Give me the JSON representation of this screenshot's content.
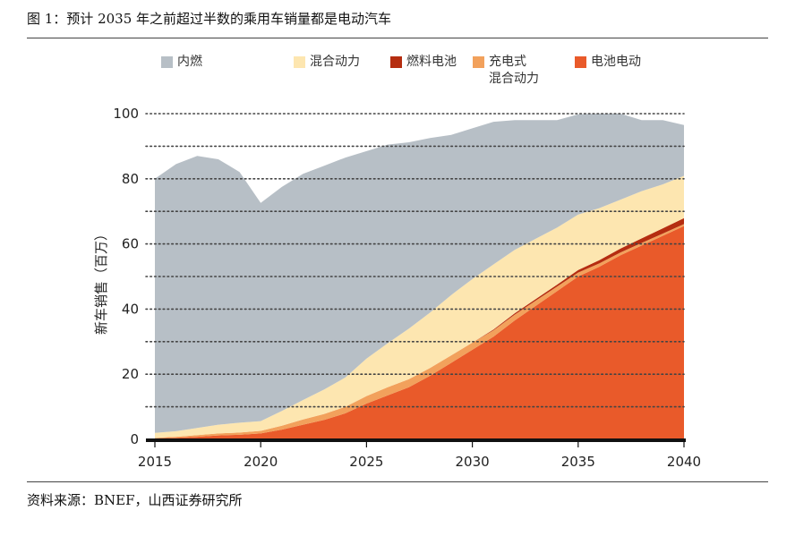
{
  "figure": {
    "title": "图 1：预计 2035 年之前超过半数的乘用车销量都是电动汽车",
    "source": "资料来源：BNEF，山西证券研究所"
  },
  "colors": {
    "ice": "#b7bfc6",
    "hybrid": "#fde6b0",
    "fuel_cell": "#b52d10",
    "phev": "#f2a15c",
    "bev": "#e95a2a",
    "gridline": "#444444",
    "axis": "#111111"
  },
  "legend": [
    {
      "key": "ice",
      "label": "内燃",
      "label2": ""
    },
    {
      "key": "hybrid",
      "label": "混合动力",
      "label2": ""
    },
    {
      "key": "fuel_cell",
      "label": "燃料电池",
      "label2": ""
    },
    {
      "key": "phev",
      "label": "充电式",
      "label2": "混合动力"
    },
    {
      "key": "bev",
      "label": "电池电动",
      "label2": ""
    }
  ],
  "chart_data": {
    "type": "area",
    "stacked": true,
    "title": "",
    "xlabel": "",
    "ylabel": "新车销售（百万）",
    "xlim": [
      2015,
      2040
    ],
    "ylim": [
      0,
      100
    ],
    "x_ticks": [
      "2015",
      "2020",
      "2025",
      "2030",
      "2035",
      "2040"
    ],
    "y_ticks": [
      "0",
      "20",
      "40",
      "60",
      "80",
      "100"
    ],
    "grid": "horizontal dotted",
    "legend_position": "top",
    "x": [
      2015,
      2016,
      2017,
      2018,
      2019,
      2020,
      2021,
      2022,
      2023,
      2024,
      2025,
      2026,
      2027,
      2028,
      2029,
      2030,
      2031,
      2032,
      2033,
      2034,
      2035,
      2036,
      2037,
      2038,
      2039,
      2040
    ],
    "series": [
      {
        "name": "电池电动",
        "key": "bev",
        "values": [
          0.3,
          0.5,
          0.8,
          1.2,
          1.4,
          1.8,
          3.0,
          4.5,
          6.0,
          8.0,
          11.0,
          13.5,
          16.0,
          19.5,
          23.5,
          27.5,
          31.5,
          36.5,
          41.0,
          45.5,
          50.0,
          53.0,
          56.5,
          59.5,
          62.5,
          65.5
        ]
      },
      {
        "name": "充电式混合动力",
        "key": "phev",
        "values": [
          0.2,
          0.3,
          0.5,
          0.6,
          0.7,
          0.8,
          1.2,
          1.6,
          1.8,
          2.0,
          2.3,
          2.5,
          2.5,
          2.4,
          2.3,
          2.2,
          2.0,
          1.8,
          1.6,
          1.4,
          1.2,
          1.0,
          0.9,
          0.8,
          0.7,
          0.6
        ]
      },
      {
        "name": "燃料电池",
        "key": "fuel_cell",
        "values": [
          0,
          0,
          0,
          0,
          0,
          0,
          0,
          0,
          0,
          0,
          0,
          0,
          0,
          0,
          0,
          0,
          0.2,
          0.4,
          0.5,
          0.6,
          0.8,
          1.0,
          1.2,
          1.4,
          1.6,
          1.8
        ]
      },
      {
        "name": "混合动力",
        "key": "hybrid",
        "values": [
          1.5,
          1.7,
          2.2,
          2.7,
          3.0,
          3.0,
          4.5,
          6.0,
          7.5,
          9.0,
          11.5,
          13.5,
          15.5,
          17.0,
          18.5,
          19.5,
          20.0,
          19.5,
          18.5,
          17.5,
          17.0,
          16.0,
          15.0,
          14.5,
          13.5,
          13.0
        ]
      },
      {
        "name": "内燃",
        "key": "ice",
        "values": [
          78.0,
          82.0,
          83.5,
          81.5,
          77.0,
          67.0,
          68.8,
          69.4,
          68.7,
          67.5,
          63.7,
          61.0,
          57.2,
          53.6,
          49.2,
          46.3,
          43.8,
          39.8,
          36.4,
          33.0,
          30.8,
          29.0,
          26.4,
          21.8,
          19.7,
          15.6
        ]
      }
    ]
  }
}
